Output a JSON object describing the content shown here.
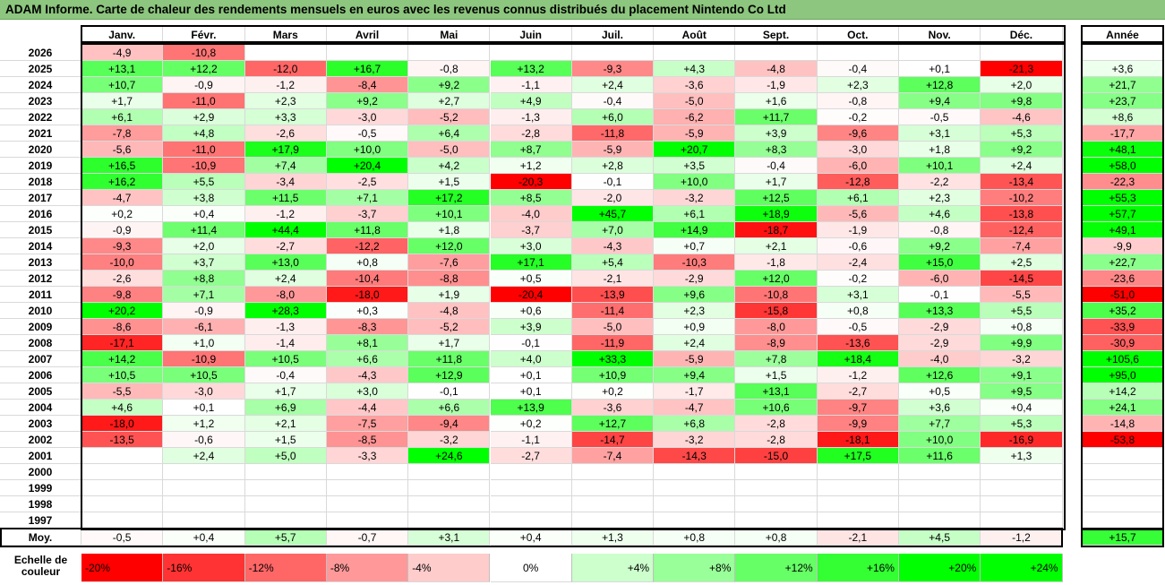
{
  "title": "ADAM Informe. Carte de chaleur des rendements mensuels en euros avec les revenus connus distribués du placement Nintendo Co Ltd",
  "chart_data": {
    "type": "heatmap",
    "months": [
      "Janv.",
      "Févr.",
      "Mars",
      "Avril",
      "Mai",
      "Juin",
      "Juil.",
      "Août",
      "Sept.",
      "Oct.",
      "Nov.",
      "Déc."
    ],
    "year_header": "Année",
    "rows": [
      {
        "year": "2026",
        "values": [
          "-4,9",
          "-10,8",
          "",
          "",
          "",
          "",
          "",
          "",
          "",
          "",
          "",
          ""
        ],
        "annual": ""
      },
      {
        "year": "2025",
        "values": [
          "+13,1",
          "+12,2",
          "-12,0",
          "+16,7",
          "-0,8",
          "+13,2",
          "-9,3",
          "+4,3",
          "-4,8",
          "-0,4",
          "+0,1",
          "-21,3"
        ],
        "annual": "+3,6"
      },
      {
        "year": "2024",
        "values": [
          "+10,7",
          "-0,9",
          "-1,2",
          "-8,4",
          "+9,2",
          "-1,1",
          "+2,4",
          "-3,6",
          "-1,9",
          "+2,3",
          "+12,8",
          "+2,0"
        ],
        "annual": "+21,7"
      },
      {
        "year": "2023",
        "values": [
          "+1,7",
          "-11,0",
          "+2,3",
          "+9,2",
          "+2,7",
          "+4,9",
          "-0,4",
          "-5,0",
          "+1,6",
          "-0,8",
          "+9,4",
          "+9,8"
        ],
        "annual": "+23,7"
      },
      {
        "year": "2022",
        "values": [
          "+6,1",
          "+2,9",
          "+3,3",
          "-3,0",
          "-5,2",
          "-1,3",
          "+6,0",
          "-6,2",
          "+11,7",
          "-0,2",
          "-0,5",
          "-4,6"
        ],
        "annual": "+8,6"
      },
      {
        "year": "2021",
        "values": [
          "-7,8",
          "+4,8",
          "-2,6",
          "-0,5",
          "+6,4",
          "-2,8",
          "-11,8",
          "-5,9",
          "+3,9",
          "-9,6",
          "+3,1",
          "+5,3"
        ],
        "annual": "-17,7"
      },
      {
        "year": "2020",
        "values": [
          "-5,6",
          "-11,0",
          "+17,9",
          "+10,0",
          "-5,0",
          "+8,7",
          "-5,9",
          "+20,7",
          "+8,3",
          "-3,0",
          "+1,8",
          "+9,2"
        ],
        "annual": "+48,1"
      },
      {
        "year": "2019",
        "values": [
          "+16,5",
          "-10,9",
          "+7,4",
          "+20,4",
          "+4,2",
          "+1,2",
          "+2,8",
          "+3,5",
          "-0,4",
          "-6,0",
          "+10,1",
          "+2,4"
        ],
        "annual": "+58,0"
      },
      {
        "year": "2018",
        "values": [
          "+16,2",
          "+5,5",
          "-3,4",
          "-2,5",
          "+1,5",
          "-20,3",
          "-0,1",
          "+10,0",
          "+1,7",
          "-12,8",
          "-2,2",
          "-13,4"
        ],
        "annual": "-22,3"
      },
      {
        "year": "2017",
        "values": [
          "-4,7",
          "+3,8",
          "+11,5",
          "+7,1",
          "+17,2",
          "+8,5",
          "-2,0",
          "-3,2",
          "+12,5",
          "+6,1",
          "+2,3",
          "-10,2"
        ],
        "annual": "+55,3"
      },
      {
        "year": "2016",
        "values": [
          "+0,2",
          "+0,4",
          "-1,2",
          "-3,7",
          "+10,1",
          "-4,0",
          "+45,7",
          "+6,1",
          "+18,9",
          "-5,6",
          "+4,6",
          "-13,8"
        ],
        "annual": "+57,7"
      },
      {
        "year": "2015",
        "values": [
          "-0,9",
          "+11,4",
          "+44,4",
          "+11,8",
          "+1,8",
          "-3,7",
          "+7,0",
          "+14,9",
          "-18,7",
          "-1,9",
          "-0,8",
          "-12,4"
        ],
        "annual": "+49,1"
      },
      {
        "year": "2014",
        "values": [
          "-9,3",
          "+2,0",
          "-2,7",
          "-12,2",
          "+12,0",
          "+3,0",
          "-4,3",
          "+0,7",
          "+2,1",
          "-0,6",
          "+9,2",
          "-7,4"
        ],
        "annual": "-9,9"
      },
      {
        "year": "2013",
        "values": [
          "-10,0",
          "+3,7",
          "+13,0",
          "+0,8",
          "-7,6",
          "+17,1",
          "+5,4",
          "-10,3",
          "-1,8",
          "-2,4",
          "+15,0",
          "+2,5"
        ],
        "annual": "+22,7"
      },
      {
        "year": "2012",
        "values": [
          "-2,6",
          "+8,8",
          "+2,4",
          "-10,4",
          "-8,8",
          "+0,5",
          "-2,1",
          "-2,9",
          "+12,0",
          "-0,2",
          "-6,0",
          "-14,5"
        ],
        "annual": "-23,6"
      },
      {
        "year": "2011",
        "values": [
          "-9,8",
          "+7,1",
          "-8,0",
          "-18,0",
          "+1,9",
          "-20,4",
          "-13,9",
          "+9,6",
          "-10,8",
          "+3,1",
          "-0,1",
          "-5,5"
        ],
        "annual": "-51,0"
      },
      {
        "year": "2010",
        "values": [
          "+20,2",
          "-0,9",
          "+28,3",
          "+0,3",
          "-4,8",
          "+0,6",
          "-11,4",
          "+2,3",
          "-15,8",
          "+0,8",
          "+13,3",
          "+5,5"
        ],
        "annual": "+35,2"
      },
      {
        "year": "2009",
        "values": [
          "-8,6",
          "-6,1",
          "-1,3",
          "-8,3",
          "-5,2",
          "+3,9",
          "-5,0",
          "+0,9",
          "-8,0",
          "-0,5",
          "-2,9",
          "+0,8"
        ],
        "annual": "-33,9"
      },
      {
        "year": "2008",
        "values": [
          "-17,1",
          "+1,0",
          "-1,4",
          "+8,1",
          "+1,7",
          "-0,1",
          "-11,9",
          "+2,4",
          "-8,9",
          "-13,6",
          "-2,9",
          "+9,9"
        ],
        "annual": "-30,9"
      },
      {
        "year": "2007",
        "values": [
          "+14,2",
          "-10,9",
          "+10,5",
          "+6,6",
          "+11,8",
          "+4,0",
          "+33,3",
          "-5,9",
          "+7,8",
          "+18,4",
          "-4,0",
          "-3,2"
        ],
        "annual": "+105,6"
      },
      {
        "year": "2006",
        "values": [
          "+10,5",
          "+10,5",
          "-0,4",
          "-4,3",
          "+12,9",
          "+0,1",
          "+10,9",
          "+9,4",
          "+1,5",
          "-1,2",
          "+12,6",
          "+9,1"
        ],
        "annual": "+95,0"
      },
      {
        "year": "2005",
        "values": [
          "-5,5",
          "-3,0",
          "+1,7",
          "+3,0",
          "-0,1",
          "+0,1",
          "+0,2",
          "-1,7",
          "+13,1",
          "-2,7",
          "+0,5",
          "+9,5"
        ],
        "annual": "+14,2"
      },
      {
        "year": "2004",
        "values": [
          "+4,6",
          "+0,1",
          "+6,9",
          "-4,4",
          "+6,6",
          "+13,9",
          "-3,6",
          "-4,7",
          "+10,6",
          "-9,7",
          "+3,6",
          "+0,4"
        ],
        "annual": "+24,1"
      },
      {
        "year": "2003",
        "values": [
          "-18,0",
          "+1,2",
          "+2,1",
          "-7,5",
          "-9,4",
          "+0,2",
          "+12,7",
          "+6,8",
          "-2,8",
          "-9,9",
          "+7,7",
          "+5,3"
        ],
        "annual": "-14,8"
      },
      {
        "year": "2002",
        "values": [
          "-13,5",
          "-0,6",
          "+1,5",
          "-8,5",
          "-3,2",
          "-1,1",
          "-14,7",
          "-3,2",
          "-2,8",
          "-18,1",
          "+10,0",
          "-16,9"
        ],
        "annual": "-53,8"
      },
      {
        "year": "2001",
        "values": [
          "",
          "+2,4",
          "+5,0",
          "-3,3",
          "+24,6",
          "-2,7",
          "-7,4",
          "-14,3",
          "-15,0",
          "+17,5",
          "+11,6",
          "+1,3"
        ],
        "annual": ""
      },
      {
        "year": "2000",
        "values": [
          "",
          "",
          "",
          "",
          "",
          "",
          "",
          "",
          "",
          "",
          "",
          ""
        ],
        "annual": ""
      },
      {
        "year": "1999",
        "values": [
          "",
          "",
          "",
          "",
          "",
          "",
          "",
          "",
          "",
          "",
          "",
          ""
        ],
        "annual": ""
      },
      {
        "year": "1998",
        "values": [
          "",
          "",
          "",
          "",
          "",
          "",
          "",
          "",
          "",
          "",
          "",
          ""
        ],
        "annual": ""
      },
      {
        "year": "1997",
        "values": [
          "",
          "",
          "",
          "",
          "",
          "",
          "",
          "",
          "",
          "",
          "",
          ""
        ],
        "annual": ""
      }
    ],
    "average": {
      "label": "Moy.",
      "values": [
        "-0,5",
        "+0,4",
        "+5,7",
        "-0,7",
        "+3,1",
        "+0,4",
        "+1,3",
        "+0,8",
        "+0,8",
        "-2,1",
        "+4,5",
        "-1,2"
      ],
      "annual": "+15,7"
    },
    "scale": {
      "label_line1": "Echelle de",
      "label_line2": "couleur",
      "steps": [
        "-20%",
        "-16%",
        "-12%",
        "-8%",
        "-4%",
        "0%",
        "+4%",
        "+8%",
        "+12%",
        "+16%",
        "+20%",
        "+24%"
      ]
    },
    "colors": {
      "negative": "#ff0000",
      "positive": "#00ff00",
      "neutral": "#ffffff",
      "title_bg": "#8dc67e"
    }
  }
}
